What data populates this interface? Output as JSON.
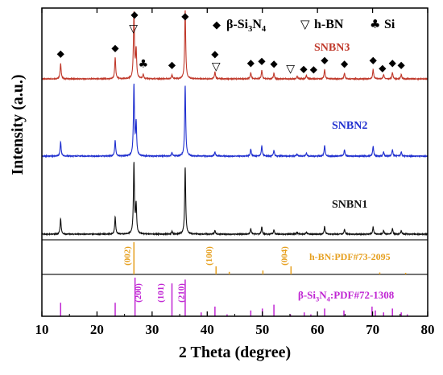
{
  "chart_data": {
    "type": "line",
    "xlabel": "2 Theta (degree)",
    "ylabel": "Intensity (a.u.)",
    "xlim": [
      10,
      80
    ],
    "x_ticks": [
      10,
      20,
      30,
      40,
      50,
      60,
      70,
      80
    ],
    "legend": {
      "placement": "top-right",
      "entries": [
        {
          "symbol": "◆",
          "label_main": "β-Si",
          "sub1": "3",
          "mid": "N",
          "sub2": "4"
        },
        {
          "symbol": "▽",
          "label": "h-BN"
        },
        {
          "symbol": "♣",
          "label": "Si"
        }
      ]
    },
    "series": [
      {
        "name": "SNBN3",
        "color": "#c0392b",
        "peaks": [
          [
            13.4,
            0.22
          ],
          [
            23.3,
            0.3
          ],
          [
            26.7,
            0.93
          ],
          [
            27.1,
            0.4
          ],
          [
            28.4,
            0.06
          ],
          [
            33.6,
            0.06
          ],
          [
            36.0,
            0.98
          ],
          [
            41.4,
            0.1
          ],
          [
            47.9,
            0.09
          ],
          [
            49.9,
            0.12
          ],
          [
            52.1,
            0.08
          ],
          [
            56.3,
            0.04
          ],
          [
            58.0,
            0.05
          ],
          [
            61.3,
            0.13
          ],
          [
            64.9,
            0.08
          ],
          [
            70.1,
            0.13
          ],
          [
            72.0,
            0.06
          ],
          [
            73.6,
            0.09
          ],
          [
            75.2,
            0.06
          ]
        ]
      },
      {
        "name": "SNBN2",
        "color": "#1f2fcf",
        "peaks": [
          [
            13.4,
            0.2
          ],
          [
            23.3,
            0.22
          ],
          [
            26.7,
            1.0
          ],
          [
            27.1,
            0.45
          ],
          [
            33.6,
            0.05
          ],
          [
            36.0,
            1.0
          ],
          [
            41.4,
            0.06
          ],
          [
            47.9,
            0.1
          ],
          [
            49.9,
            0.14
          ],
          [
            52.1,
            0.08
          ],
          [
            56.3,
            0.03
          ],
          [
            58.0,
            0.04
          ],
          [
            61.3,
            0.15
          ],
          [
            64.9,
            0.09
          ],
          [
            70.1,
            0.14
          ],
          [
            72.0,
            0.06
          ],
          [
            73.6,
            0.09
          ],
          [
            75.2,
            0.06
          ]
        ]
      },
      {
        "name": "SNBN1",
        "color": "#111111",
        "peaks": [
          [
            13.4,
            0.22
          ],
          [
            23.3,
            0.24
          ],
          [
            26.7,
            1.0
          ],
          [
            27.1,
            0.4
          ],
          [
            33.6,
            0.04
          ],
          [
            36.0,
            0.95
          ],
          [
            41.4,
            0.05
          ],
          [
            47.9,
            0.08
          ],
          [
            49.9,
            0.1
          ],
          [
            52.1,
            0.06
          ],
          [
            56.3,
            0.03
          ],
          [
            58.0,
            0.03
          ],
          [
            61.3,
            0.11
          ],
          [
            64.9,
            0.07
          ],
          [
            70.1,
            0.1
          ],
          [
            72.0,
            0.05
          ],
          [
            73.6,
            0.08
          ],
          [
            75.2,
            0.05
          ]
        ]
      }
    ],
    "peak_markers": [
      {
        "x": 13.4,
        "symbol": "◆"
      },
      {
        "x": 23.3,
        "symbol": "◆"
      },
      {
        "x": 26.8,
        "symbol": "◆"
      },
      {
        "x": 26.6,
        "symbol": "▽"
      },
      {
        "x": 28.4,
        "symbol": "♣"
      },
      {
        "x": 33.6,
        "symbol": "◆"
      },
      {
        "x": 36.0,
        "symbol": "◆"
      },
      {
        "x": 41.4,
        "symbol": "◆"
      },
      {
        "x": 41.6,
        "symbol": "▽"
      },
      {
        "x": 47.9,
        "symbol": "◆"
      },
      {
        "x": 49.9,
        "symbol": "◆"
      },
      {
        "x": 52.1,
        "symbol": "◆"
      },
      {
        "x": 55.1,
        "symbol": "▽"
      },
      {
        "x": 57.5,
        "symbol": "◆"
      },
      {
        "x": 59.3,
        "symbol": "◆"
      },
      {
        "x": 61.3,
        "symbol": "◆"
      },
      {
        "x": 64.9,
        "symbol": "◆"
      },
      {
        "x": 70.1,
        "symbol": "◆"
      },
      {
        "x": 71.8,
        "symbol": "◆"
      },
      {
        "x": 73.6,
        "symbol": "◆"
      },
      {
        "x": 75.2,
        "symbol": "◆"
      }
    ],
    "reference_hbn": {
      "label": "h-BN:PDF#73-2095",
      "color": "#e6a020",
      "lines": [
        [
          26.7,
          1.0
        ],
        [
          41.6,
          0.25
        ],
        [
          44.0,
          0.08
        ],
        [
          50.1,
          0.12
        ],
        [
          55.2,
          0.25
        ],
        [
          71.3,
          0.06
        ],
        [
          76.0,
          0.05
        ]
      ],
      "miller": [
        {
          "x": 26.7,
          "text": "(002)"
        },
        {
          "x": 41.6,
          "text": "(100)"
        },
        {
          "x": 55.2,
          "text": "(004)"
        }
      ]
    },
    "reference_si3n4": {
      "label_main": "β-Si",
      "sub1": "3",
      "mid": "N",
      "sub2": "4",
      "label_tail": ":PDF#72-1308",
      "color": "#c026d3",
      "lines": [
        [
          13.4,
          0.35
        ],
        [
          23.3,
          0.35
        ],
        [
          26.9,
          1.0
        ],
        [
          33.6,
          0.85
        ],
        [
          36.0,
          0.95
        ],
        [
          38.9,
          0.1
        ],
        [
          41.4,
          0.25
        ],
        [
          43.6,
          0.05
        ],
        [
          47.9,
          0.15
        ],
        [
          50.0,
          0.2
        ],
        [
          52.1,
          0.3
        ],
        [
          55.1,
          0.05
        ],
        [
          57.6,
          0.1
        ],
        [
          58.8,
          0.05
        ],
        [
          61.3,
          0.2
        ],
        [
          64.8,
          0.15
        ],
        [
          69.9,
          0.25
        ],
        [
          70.5,
          0.15
        ],
        [
          72.0,
          0.1
        ],
        [
          73.6,
          0.2
        ],
        [
          75.2,
          0.1
        ],
        [
          76.3,
          0.05
        ]
      ],
      "miller": [
        {
          "x": 27.4,
          "text": "(200)"
        },
        {
          "x": 31.5,
          "text": "(101)"
        },
        {
          "x": 35.2,
          "text": "(210)"
        }
      ]
    }
  }
}
